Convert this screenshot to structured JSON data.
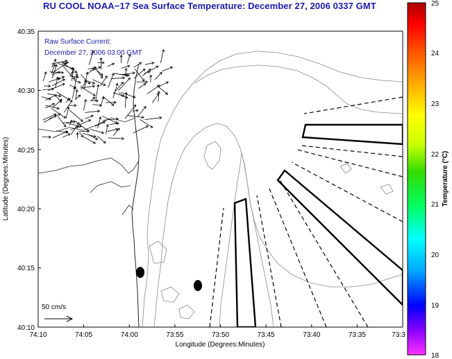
{
  "title": "RU COOL  NOAA−17  Sea Surface Temperature:  December 27, 2006 0337 GMT",
  "current_label": "Raw Surface Current:",
  "current_time": "December 27, 2006 03:00 GMT",
  "scale_label": "50 cm/s",
  "x_axis": {
    "title": "Longitude (Degrees:Minutes)",
    "ticks": [
      "74:10",
      "74:05",
      "74:00",
      "73:55",
      "73:50",
      "73:45",
      "73:40",
      "73:35",
      "73:3"
    ]
  },
  "y_axis": {
    "title": "Latitude (Degrees:Minutes)",
    "ticks": [
      "40:35",
      "40:30",
      "40:25",
      "40:20",
      "40:15",
      "40:10"
    ]
  },
  "colorbar": {
    "title": "Temperature (°C)",
    "ticks": [
      "25",
      "24",
      "23",
      "22",
      "21",
      "20",
      "19",
      "18"
    ],
    "range": [
      18,
      25
    ],
    "colors": [
      "#ff33ff",
      "#8800ff",
      "#0000ff",
      "#00aaff",
      "#00ffff",
      "#00ff66",
      "#33dd00",
      "#ccff00",
      "#ffff00",
      "#ffaa00",
      "#ff5500",
      "#ff0000",
      "#aa0000"
    ]
  }
}
